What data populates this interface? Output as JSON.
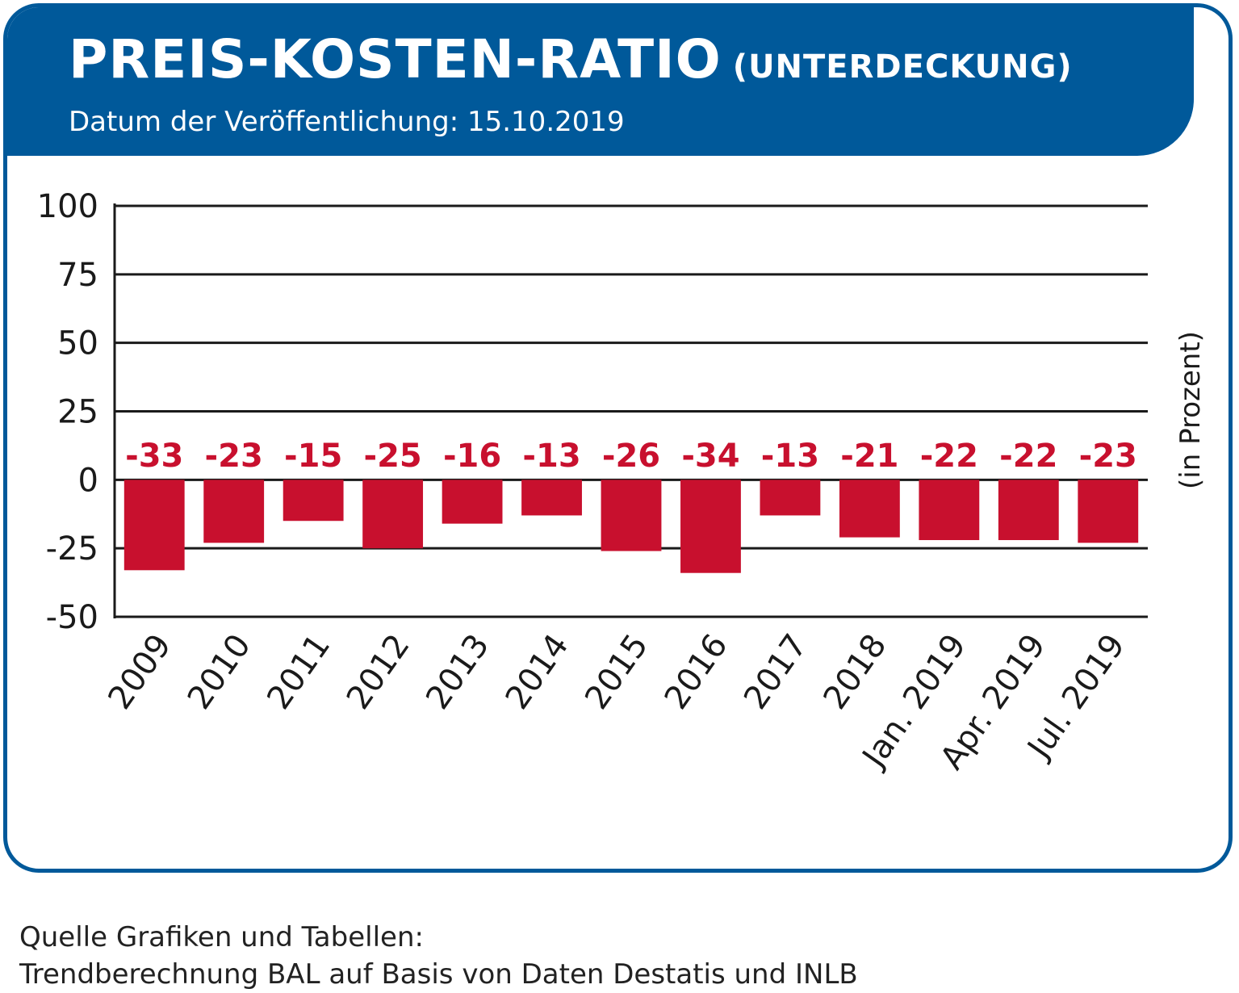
{
  "header": {
    "title": "PREIS-KOSTEN-RATIO",
    "title_suffix": "(UNTERDECKUNG)",
    "subtitle": "Datum der Veröffentlichung: 15.10.2019"
  },
  "colors": {
    "brand_blue": "#00599a",
    "bar_red": "#c8102e",
    "label_red": "#c8102e"
  },
  "chart_data": {
    "type": "bar",
    "categories": [
      "2009",
      "2010",
      "2011",
      "2012",
      "2013",
      "2014",
      "2015",
      "2016",
      "2017",
      "2018",
      "Jan. 2019",
      "Apr. 2019",
      "Jul. 2019"
    ],
    "values": [
      -33,
      -23,
      -15,
      -25,
      -16,
      -13,
      -26,
      -34,
      -13,
      -21,
      -22,
      -22,
      -23
    ],
    "data_labels": [
      "-33",
      "-23",
      "-15",
      "-25",
      "-16",
      "-13",
      "-26",
      "-34",
      "-13",
      "-21",
      "-22",
      "-22",
      "-23"
    ],
    "ylabel": "(in Prozent)",
    "ylim": [
      -50,
      100
    ],
    "yticks": [
      100,
      75,
      50,
      25,
      0,
      -25,
      -50
    ],
    "grid": true
  },
  "footer": {
    "source_line1": "Quelle Grafiken und Tabellen:",
    "source_line2": "Trendberechnung BAL auf Basis von Daten Destatis und INLB"
  }
}
